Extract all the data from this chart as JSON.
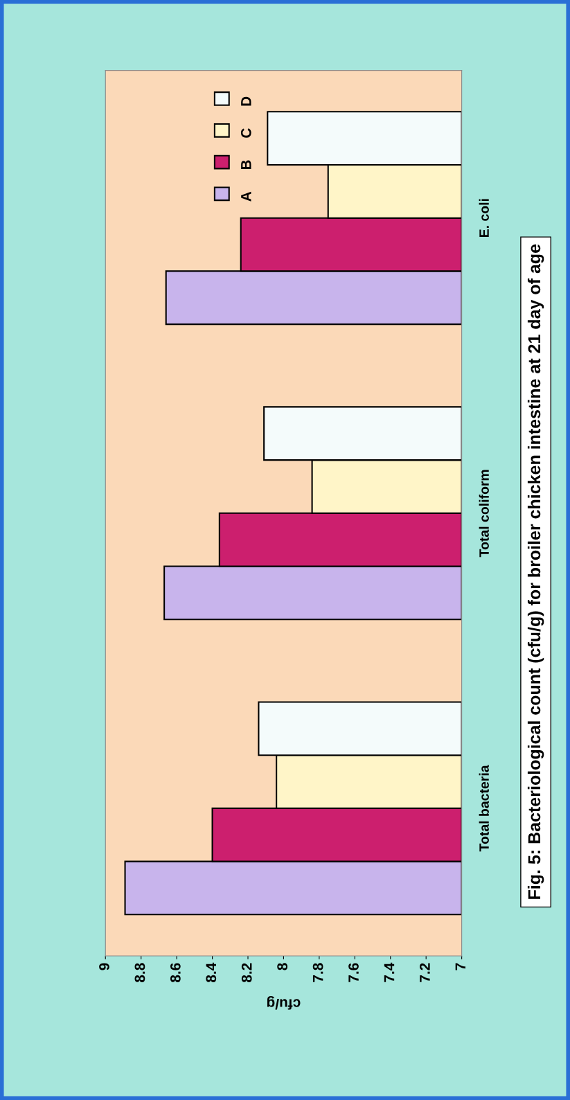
{
  "chart_data": {
    "type": "bar",
    "orientation": "horizontal",
    "title": "Fig. 5: Bacteriological count (cfu/g) for broiler chicken intestine at 21 day of age",
    "xlabel": "cfu/g",
    "categories": [
      "E. coli",
      "Total coliform",
      "Total bacteria"
    ],
    "series": [
      {
        "name": "A",
        "color": "#c8b4ec",
        "values": [
          8.66,
          8.67,
          8.89
        ]
      },
      {
        "name": "B",
        "color": "#cc1f6e",
        "values": [
          8.24,
          8.36,
          8.4
        ]
      },
      {
        "name": "C",
        "color": "#fff5c8",
        "values": [
          7.75,
          7.84,
          8.04
        ]
      },
      {
        "name": "D",
        "color": "#f4fbfb",
        "values": [
          8.09,
          8.11,
          8.14
        ]
      }
    ],
    "xlim": [
      9,
      7
    ],
    "xticks": [
      9,
      8.8,
      8.6,
      8.4,
      8.2,
      8,
      7.8,
      7.6,
      7.4,
      7.2,
      7
    ],
    "grid": false,
    "legend": "top left"
  }
}
